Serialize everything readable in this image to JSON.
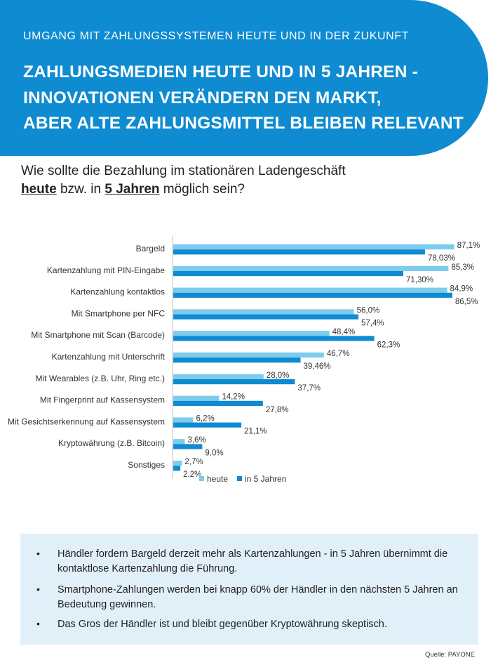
{
  "header": {
    "kicker": "UMGANG MIT ZAHLUNGSSYSTEMEN HEUTE UND IN DER ZUKUNFT",
    "headline_line1": "ZAHLUNGSMEDIEN HEUTE UND IN 5 JAHREN -",
    "headline_line2": "INNOVATIONEN VERÄNDERN DEN MARKT,",
    "headline_line3": "ABER ALTE ZAHLUNGSMITTEL BLEIBEN RELEVANT",
    "color": "#0e8bd1"
  },
  "question": {
    "part1": "Wie sollte die Bezahlung im stationären Ladengeschäft",
    "emph1": "heute",
    "part2": " bzw. in ",
    "emph2": "5 Jahren",
    "part3": " möglich sein?"
  },
  "chart_data": {
    "type": "bar",
    "orientation": "horizontal",
    "title": "",
    "xlabel": "",
    "ylabel": "",
    "xlim": [
      0,
      100
    ],
    "grid": false,
    "legend_position": "bottom",
    "categories": [
      "Bargeld",
      "Kartenzahlung mit PIN-Eingabe",
      "Kartenzahlung kontaktlos",
      "Mit Smartphone per NFC",
      "Mit Smartphone mit Scan (Barcode)",
      "Kartenzahlung mit Unterschrift",
      "Mit Wearables (z.B. Uhr, Ring etc.)",
      "Mit Fingerprint auf Kassensystem",
      "Mit Gesichtserkennung auf Kassensystem",
      "Kryptowährung (z.B. Bitcoin)",
      "Sonstiges"
    ],
    "series": [
      {
        "name": "heute",
        "color": "#7dcbed",
        "values": [
          87.1,
          85.3,
          84.9,
          56.0,
          48.4,
          46.7,
          28.0,
          14.2,
          6.2,
          3.6,
          2.7
        ],
        "labels": [
          "87,1%",
          "85,3%",
          "84,9%",
          "56,0%",
          "48,4%",
          "46,7%",
          "28,0%",
          "14,2%",
          "6,2%",
          "3,6%",
          "2,7%"
        ]
      },
      {
        "name": "in 5 Jahren",
        "color": "#0e8bd1",
        "values": [
          78.03,
          71.3,
          86.5,
          57.4,
          62.3,
          39.46,
          37.7,
          27.8,
          21.1,
          9.0,
          2.2
        ],
        "labels": [
          "78,03%",
          "71,30%",
          "86,5%",
          "57,4%",
          "62,3%",
          "39,46%",
          "37,7%",
          "27,8%",
          "21,1%",
          "9,0%",
          "2,2%"
        ]
      }
    ]
  },
  "notes": {
    "bullet_symbol": "•",
    "items": [
      "Händler fordern Bargeld derzeit mehr als Kartenzahlungen - in 5 Jahren übernimmt die kontaktlose Kartenzahlung die Führung.",
      "Smartphone-Zahlungen werden bei knapp 60% der Händler in den nächsten 5 Jahren an Bedeutung gewinnen.",
      "Das Gros der Händler ist und bleibt gegenüber Kryptowährung skeptisch."
    ]
  },
  "source": "Quelle: PAYONE"
}
